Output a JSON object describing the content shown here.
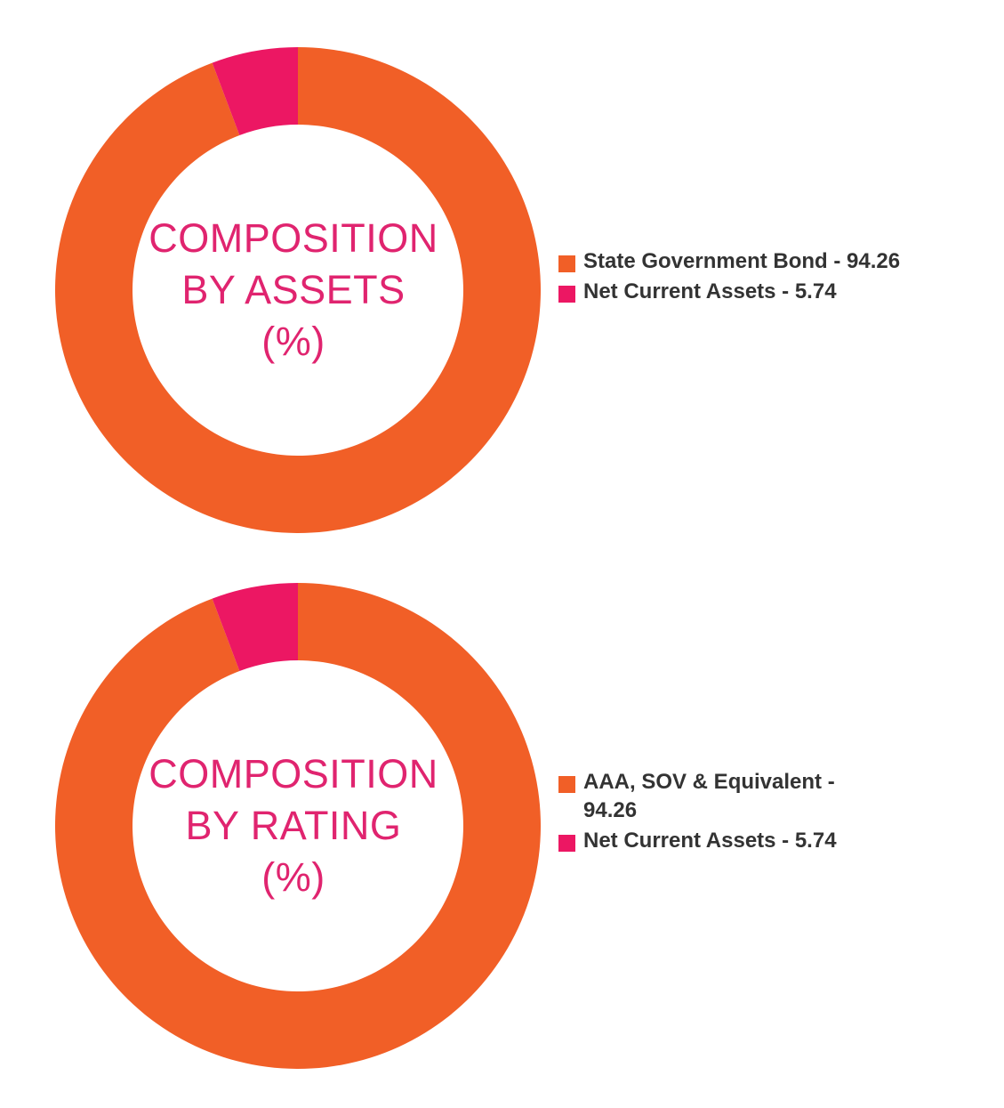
{
  "chart_data": [
    {
      "type": "pie",
      "variant": "donut",
      "title_lines": [
        "COMPOSITION",
        "BY ASSETS",
        "(%)"
      ],
      "legend_placement": "right",
      "series": [
        {
          "label": "State Government Bond - 94.26",
          "value": 94.26,
          "color": "#f15f27"
        },
        {
          "label": "Net Current Assets - 5.74",
          "value": 5.74,
          "color": "#ec1763"
        }
      ]
    },
    {
      "type": "pie",
      "variant": "donut",
      "title_lines": [
        "COMPOSITION",
        "BY RATING",
        "(%)"
      ],
      "legend_placement": "right",
      "series": [
        {
          "label": "AAA, SOV & Equivalent - 94.26",
          "value": 94.26,
          "color": "#f15f27"
        },
        {
          "label": "Net Current Assets - 5.74",
          "value": 5.74,
          "color": "#ec1763"
        }
      ]
    }
  ],
  "colors": {
    "title": "#e0246f",
    "legend_text": "#333333"
  }
}
